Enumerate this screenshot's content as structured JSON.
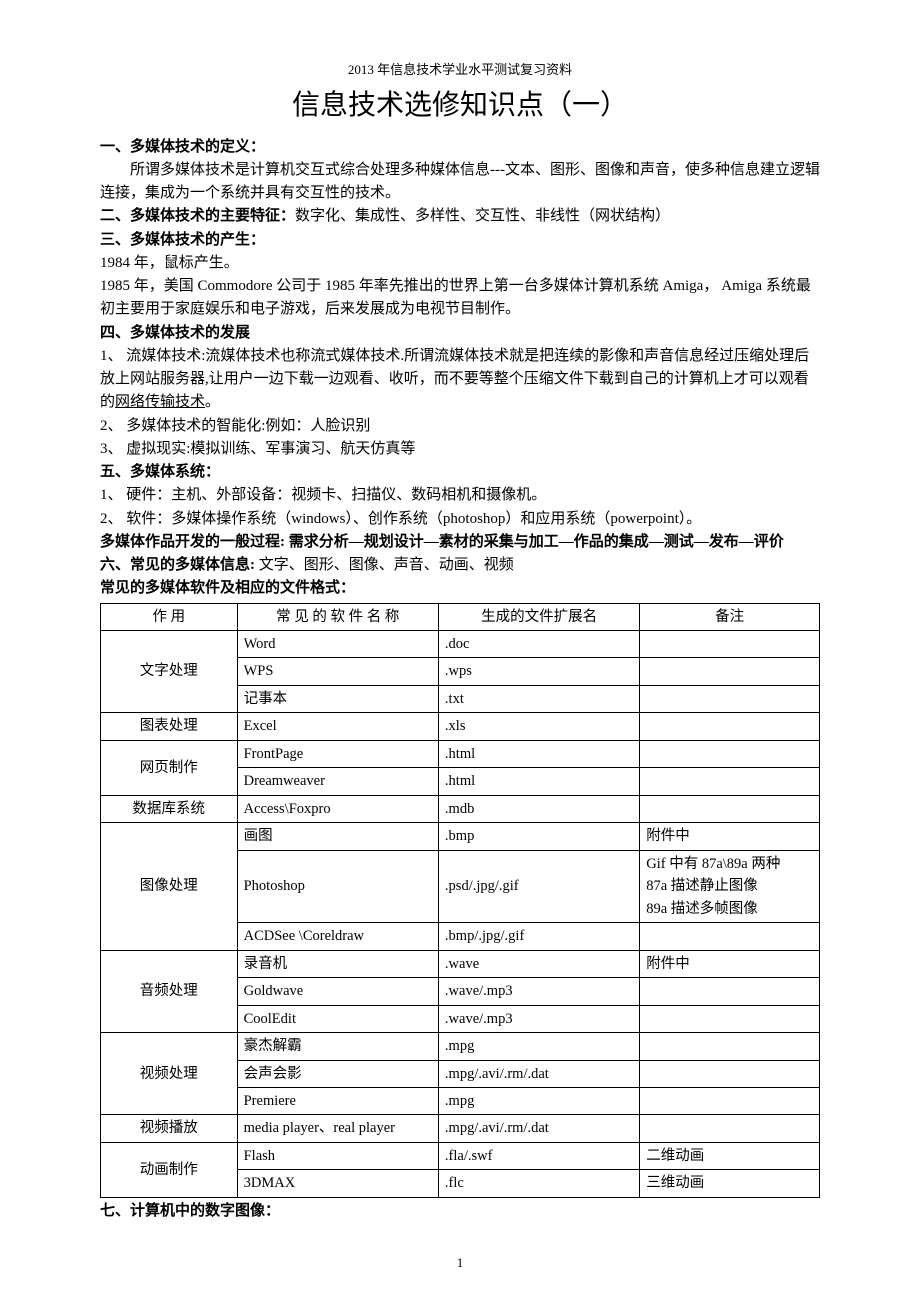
{
  "header_small": "2013 年信息技术学业水平测试复习资料",
  "title": "信息技术选修知识点（一）",
  "s1_head": "一、多媒体技术的定义：",
  "s1_body": "所谓多媒体技术是计算机交互式综合处理多种媒体信息---文本、图形、图像和声音，使多种信息建立逻辑连接，集成为一个系统并具有交互性的技术。",
  "s2_head": "二、多媒体技术的主要特征：",
  "s2_body": "数字化、集成性、多样性、交互性、非线性（网状结构）",
  "s3_head": "三、多媒体技术的产生：",
  "s3_l1": "1984 年，鼠标产生。",
  "s3_l2": "1985 年，美国 Commodore 公司于 1985 年率先推出的世界上第一台多媒体计算机系统 Amiga，  Amiga 系统最初主要用于家庭娱乐和电子游戏，后来发展成为电视节目制作。",
  "s4_head": "四、多媒体技术的发展",
  "s4_i1_a": "1、 流媒体技术:流媒体技术也称流式媒体技术.所谓流媒体技术就是把连续的影像和声音信息经过压缩处理后放上网站服务器,让用户一边下载一边观看、收听，而不要等整个压缩文件下载到自己的计算机上才可以观看的",
  "s4_i1_b": "网络传输技术",
  "s4_i1_c": "。",
  "s4_i2": "2、 多媒体技术的智能化:例如：人脸识别",
  "s4_i3": "3、 虚拟现实:模拟训练、军事演习、航天仿真等",
  "s5_head": "五、多媒体系统：",
  "s5_i1": "1、 硬件：主机、外部设备：视频卡、扫描仪、数码相机和摄像机。",
  "s5_i2": "2、 软件：多媒体操作系统（windows）、创作系统（photoshop）和应用系统（powerpoint）。",
  "process_head": "多媒体作品开发的一般过程:",
  "process_body": " 需求分析—规划设计—素材的采集与加工—作品的集成—测试—发布—评价",
  "s6_head": "六、常见的多媒体信息:",
  "s6_body": " 文字、图形、图像、声音、动画、视频",
  "table_head": "常见的多媒体软件及相应的文件格式：",
  "th1": "作  用",
  "th2": "常 见 的 软 件 名 称",
  "th3": "生成的文件扩展名",
  "th4": "备注",
  "rows": [
    {
      "cat": "文字处理",
      "span": 3,
      "sw": "Word",
      "ext": ".doc",
      "note": ""
    },
    {
      "cat": "",
      "span": 0,
      "sw": "WPS",
      "ext": ".wps",
      "note": ""
    },
    {
      "cat": "",
      "span": 0,
      "sw": "记事本",
      "ext": ".txt",
      "note": ""
    },
    {
      "cat": "图表处理",
      "span": 1,
      "sw": "Excel",
      "ext": ".xls",
      "note": ""
    },
    {
      "cat": "网页制作",
      "span": 2,
      "sw": "FrontPage",
      "ext": ".html",
      "note": ""
    },
    {
      "cat": "",
      "span": 0,
      "sw": "Dreamweaver",
      "ext": ".html",
      "note": ""
    },
    {
      "cat": "数据库系统",
      "span": 1,
      "sw": "Access\\Foxpro",
      "ext": ".mdb",
      "note": ""
    },
    {
      "cat": "图像处理",
      "span": 3,
      "sw": "画图",
      "ext": ".bmp",
      "note": "附件中"
    },
    {
      "cat": "",
      "span": 0,
      "sw": "Photoshop",
      "ext": ".psd/.jpg/.gif",
      "note": "Gif 中有 87a\\89a 两种\n87a 描述静止图像\n89a 描述多帧图像"
    },
    {
      "cat": "",
      "span": 0,
      "sw": "ACDSee \\Coreldraw",
      "ext": ".bmp/.jpg/.gif",
      "note": ""
    },
    {
      "cat": "音频处理",
      "span": 3,
      "sw": "录音机",
      "ext": ".wave",
      "note": "附件中"
    },
    {
      "cat": "",
      "span": 0,
      "sw": "Goldwave",
      "ext": ".wave/.mp3",
      "note": ""
    },
    {
      "cat": "",
      "span": 0,
      "sw": "CoolEdit",
      "ext": ".wave/.mp3",
      "note": ""
    },
    {
      "cat": "视频处理",
      "span": 3,
      "sw": "豪杰解霸",
      "ext": ".mpg",
      "note": ""
    },
    {
      "cat": "",
      "span": 0,
      "sw": "会声会影",
      "ext": ".mpg/.avi/.rm/.dat",
      "note": ""
    },
    {
      "cat": "",
      "span": 0,
      "sw": "Premiere",
      "ext": ".mpg",
      "note": ""
    },
    {
      "cat": "视频播放",
      "span": 1,
      "sw": "media player、real player",
      "ext": ".mpg/.avi/.rm/.dat",
      "note": ""
    },
    {
      "cat": "动画制作",
      "span": 2,
      "sw": "Flash",
      "ext": ".fla/.swf",
      "note": "二维动画"
    },
    {
      "cat": "",
      "span": 0,
      "sw": "3DMAX",
      "ext": ".flc",
      "note": "三维动画"
    }
  ],
  "s7_head": "七、计算机中的数字图像：",
  "page_num": "1"
}
